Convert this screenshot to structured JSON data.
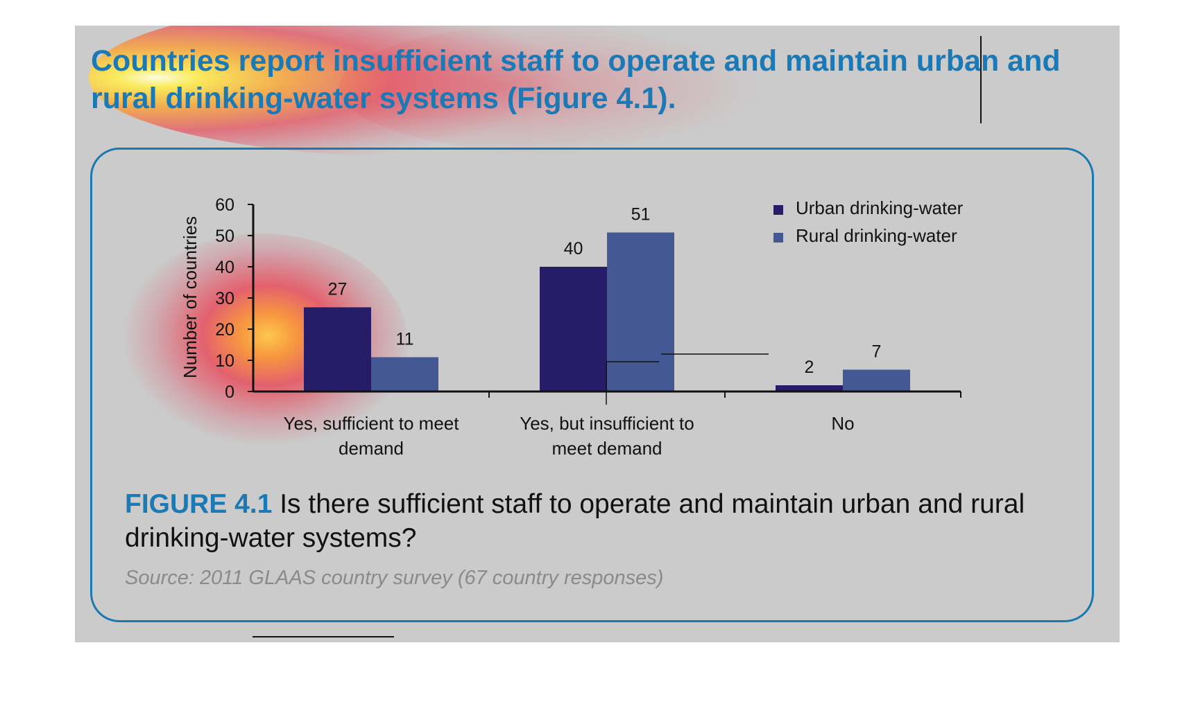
{
  "headline": "Countries report insufficient staff to operate and maintain urban and rural drinking-water systems (Figure 4.1).",
  "caption": {
    "label": "FIGURE 4.1",
    "text": " Is there sufficient staff to operate and maintain urban and rural drinking-water systems?"
  },
  "source": "Source: 2011 GLAAS country survey (67 country responses)",
  "colors": {
    "urban": "#261c68",
    "rural": "#445893",
    "accent": "#1b7ab5",
    "panel_bg": "#cbcbcb"
  },
  "chart_data": {
    "type": "bar",
    "title": "",
    "xlabel": "",
    "ylabel": "Number of countries",
    "ylim": [
      0,
      60
    ],
    "yticks": [
      "0",
      "10",
      "20",
      "30",
      "40",
      "50",
      "60"
    ],
    "grid": false,
    "legend_position": "top-right",
    "categories": [
      [
        "Yes, sufficient to meet",
        "demand"
      ],
      [
        "Yes, but insufficient to",
        "meet demand"
      ],
      [
        "No"
      ]
    ],
    "series": [
      {
        "name": "Urban drinking-water",
        "values": [
          27,
          40,
          2
        ]
      },
      {
        "name": "Rural drinking-water",
        "values": [
          11,
          51,
          7
        ]
      }
    ]
  }
}
